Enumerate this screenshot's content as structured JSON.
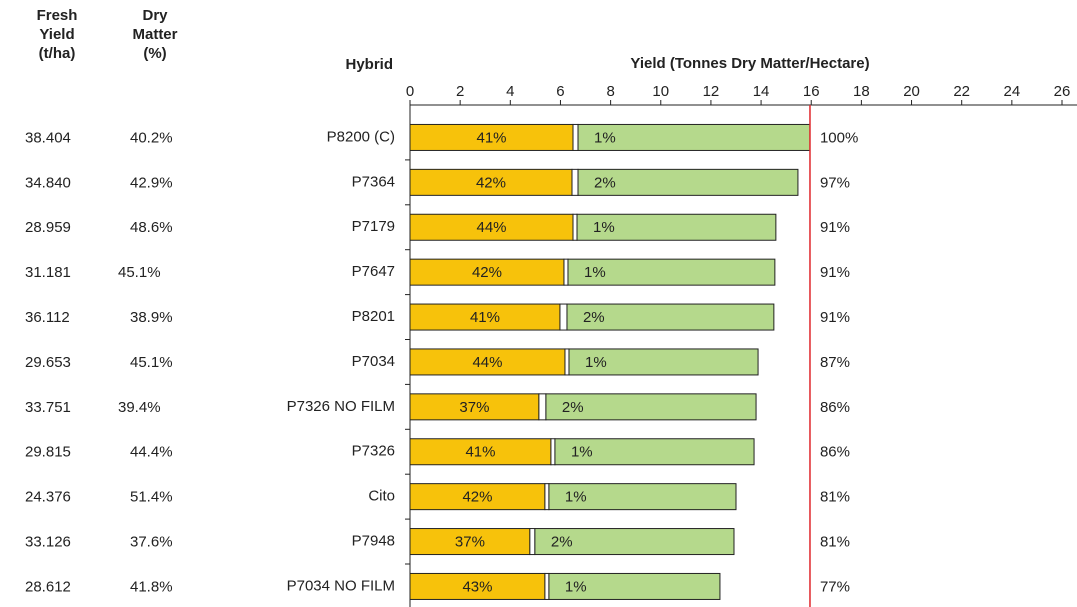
{
  "chart_data": {
    "type": "bar",
    "orientation": "horizontal",
    "stacked": true,
    "title": "Yield (Tonnes Dry Matter/Hectare)",
    "category_header": "Hybrid",
    "categories": [
      "P8200 (C)",
      "P7364",
      "P7179",
      "P7647",
      "P8201",
      "P7034",
      "P7326 NO FILM",
      "P7326",
      "Cito",
      "P7948",
      "P7034 NO FILM"
    ],
    "columns": [
      {
        "header": [
          "Fresh",
          "Yield",
          "(t/ha)"
        ],
        "values": [
          "38.404",
          "34.840",
          "28.959",
          "31.181",
          "36.112",
          "29.653",
          "33.751",
          "29.815",
          "24.376",
          "33.126",
          "28.612"
        ]
      },
      {
        "header": [
          "Dry",
          "Matter",
          "(%)"
        ],
        "values": [
          "40.2%",
          "42.9%",
          "48.6%",
          "45.1%",
          "38.9%",
          "45.1%",
          "39.4%",
          "44.4%",
          "51.4%",
          "37.6%",
          "41.8%"
        ]
      }
    ],
    "series": [
      {
        "color": "#f7c20b",
        "values": [
          6.5,
          6.46,
          6.5,
          6.14,
          5.98,
          6.18,
          5.14,
          5.62,
          5.38,
          4.78,
          5.38
        ],
        "labels": [
          "41%",
          "42%",
          "44%",
          "42%",
          "41%",
          "44%",
          "37%",
          "41%",
          "42%",
          "37%",
          "43%"
        ]
      },
      {
        "color": "#ffffff",
        "values": [
          0.2,
          0.24,
          0.16,
          0.16,
          0.28,
          0.16,
          0.28,
          0.16,
          0.16,
          0.2,
          0.16
        ]
      },
      {
        "color": "#b5d98c",
        "values": [
          9.25,
          8.77,
          7.93,
          8.25,
          8.25,
          7.54,
          8.38,
          7.94,
          7.46,
          7.94,
          6.82
        ],
        "labels": [
          "1%",
          "2%",
          "1%",
          "1%",
          "2%",
          "1%",
          "2%",
          "1%",
          "1%",
          "2%",
          "1%"
        ]
      }
    ],
    "relative_labels": [
      "100%",
      "97%",
      "91%",
      "91%",
      "91%",
      "87%",
      "86%",
      "86%",
      "81%",
      "81%",
      "77%"
    ],
    "relative_color": "#e0262b",
    "reference_line": 15.95,
    "xlim": [
      0,
      26
    ],
    "xticks": [
      0,
      2,
      4,
      6,
      8,
      10,
      12,
      14,
      16,
      18,
      20,
      22,
      24,
      26
    ],
    "grid": false
  }
}
